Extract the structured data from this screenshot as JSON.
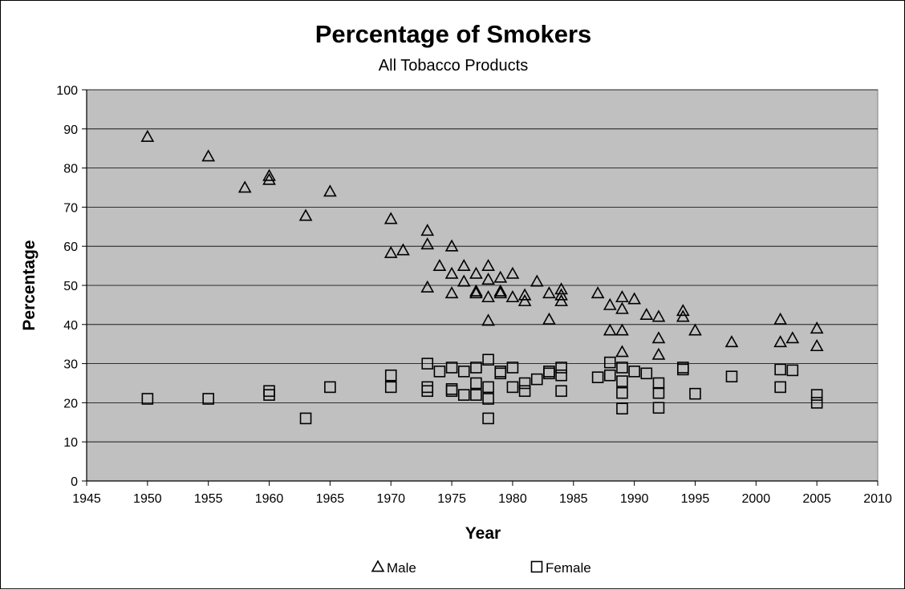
{
  "chart_data": {
    "type": "scatter",
    "title": "Percentage of Smokers",
    "subtitle": "All Tobacco Products",
    "xlabel": "Year",
    "ylabel": "Percentage",
    "xlim": [
      1945,
      2010
    ],
    "ylim": [
      0,
      100
    ],
    "xticks": [
      1945,
      1950,
      1955,
      1960,
      1965,
      1970,
      1975,
      1980,
      1985,
      1990,
      1995,
      2000,
      2005,
      2010
    ],
    "yticks": [
      0,
      10,
      20,
      30,
      40,
      50,
      60,
      70,
      80,
      90,
      100
    ],
    "grid": "horizontal",
    "plot_background": "#c0c0c0",
    "legend_position": "bottom",
    "series": [
      {
        "name": "Male",
        "marker": "triangle",
        "points": [
          [
            1950,
            88
          ],
          [
            1955,
            83
          ],
          [
            1958,
            75
          ],
          [
            1960,
            78
          ],
          [
            1960,
            77
          ],
          [
            1963,
            67.8
          ],
          [
            1965,
            74
          ],
          [
            1970,
            67
          ],
          [
            1970,
            58.3
          ],
          [
            1971,
            59
          ],
          [
            1973,
            64
          ],
          [
            1973,
            60.5
          ],
          [
            1973,
            49.5
          ],
          [
            1974,
            55
          ],
          [
            1975,
            60
          ],
          [
            1975,
            53
          ],
          [
            1975,
            48
          ],
          [
            1976,
            55
          ],
          [
            1976,
            51
          ],
          [
            1977,
            53
          ],
          [
            1977,
            48.5
          ],
          [
            1977,
            48
          ],
          [
            1978,
            55
          ],
          [
            1978,
            51.5
          ],
          [
            1978,
            47
          ],
          [
            1978,
            41
          ],
          [
            1979,
            52
          ],
          [
            1979,
            48.5
          ],
          [
            1979,
            48
          ],
          [
            1980,
            53
          ],
          [
            1980,
            47
          ],
          [
            1981,
            47.5
          ],
          [
            1981,
            46
          ],
          [
            1982,
            51
          ],
          [
            1983,
            48
          ],
          [
            1983,
            41.3
          ],
          [
            1984,
            49
          ],
          [
            1984,
            47.5
          ],
          [
            1984,
            46
          ],
          [
            1987,
            48
          ],
          [
            1988,
            45
          ],
          [
            1988,
            38.5
          ],
          [
            1989,
            47
          ],
          [
            1989,
            44
          ],
          [
            1989,
            38.5
          ],
          [
            1989,
            33
          ],
          [
            1990,
            46.5
          ],
          [
            1991,
            42.5
          ],
          [
            1992,
            42
          ],
          [
            1992,
            36.5
          ],
          [
            1992,
            32.3
          ],
          [
            1994,
            43.5
          ],
          [
            1994,
            42
          ],
          [
            1995,
            38.5
          ],
          [
            1998,
            35.5
          ],
          [
            2002,
            41.3
          ],
          [
            2002,
            35.5
          ],
          [
            2003,
            36.5
          ],
          [
            2005,
            39
          ],
          [
            2005,
            34.5
          ]
        ]
      },
      {
        "name": "Female",
        "marker": "square",
        "points": [
          [
            1950,
            21
          ],
          [
            1955,
            21
          ],
          [
            1960,
            23
          ],
          [
            1960,
            22
          ],
          [
            1963,
            16
          ],
          [
            1965,
            24
          ],
          [
            1970,
            27
          ],
          [
            1970,
            24
          ],
          [
            1973,
            30
          ],
          [
            1973,
            24
          ],
          [
            1973,
            23
          ],
          [
            1974,
            28
          ],
          [
            1975,
            29
          ],
          [
            1975,
            23.5
          ],
          [
            1975,
            23
          ],
          [
            1976,
            28
          ],
          [
            1976,
            22
          ],
          [
            1977,
            29
          ],
          [
            1977,
            25
          ],
          [
            1977,
            22
          ],
          [
            1978,
            31
          ],
          [
            1978,
            24
          ],
          [
            1978,
            21
          ],
          [
            1978,
            16
          ],
          [
            1979,
            28
          ],
          [
            1979,
            27.5
          ],
          [
            1980,
            29
          ],
          [
            1980,
            24
          ],
          [
            1981,
            25
          ],
          [
            1981,
            23
          ],
          [
            1982,
            26
          ],
          [
            1983,
            28
          ],
          [
            1983,
            27.5
          ],
          [
            1984,
            29
          ],
          [
            1984,
            27
          ],
          [
            1984,
            23
          ],
          [
            1987,
            26.5
          ],
          [
            1988,
            30.3
          ],
          [
            1988,
            27
          ],
          [
            1989,
            29
          ],
          [
            1989,
            25.5
          ],
          [
            1989,
            22.5
          ],
          [
            1989,
            18.5
          ],
          [
            1990,
            28
          ],
          [
            1991,
            27.5
          ],
          [
            1992,
            25
          ],
          [
            1992,
            22.5
          ],
          [
            1992,
            18.7
          ],
          [
            1994,
            29
          ],
          [
            1994,
            28.5
          ],
          [
            1995,
            22.3
          ],
          [
            1998,
            26.7
          ],
          [
            2002,
            28.5
          ],
          [
            2002,
            24
          ],
          [
            2003,
            28.3
          ],
          [
            2005,
            22
          ],
          [
            2005,
            20
          ]
        ]
      }
    ]
  }
}
